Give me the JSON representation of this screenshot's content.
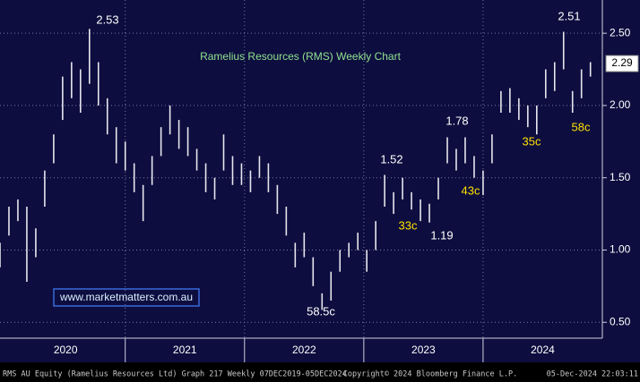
{
  "chart_data": {
    "type": "hilo",
    "title": "Ramelius Resources (RMS) Weekly Chart",
    "watermark": "www.marketmatters.com.au",
    "footer_left": "RMS AU Equity (Ramelius Resources Ltd) Graph 217  Weekly 07DEC2019-05DEC2024",
    "footer_center": "Copyright© 2024 Bloomberg Finance L.P.",
    "footer_right": "05-Dec-2024 22:03:11",
    "color": "#e6e6ee",
    "x": [
      2019.95,
      2020.025,
      2020.1,
      2020.175,
      2020.25,
      2020.325,
      2020.4,
      2020.475,
      2020.55,
      2020.625,
      2020.7,
      2020.775,
      2020.85,
      2020.925,
      2021.0,
      2021.075,
      2021.15,
      2021.225,
      2021.3,
      2021.375,
      2021.45,
      2021.525,
      2021.6,
      2021.675,
      2021.75,
      2021.825,
      2021.9,
      2021.975,
      2022.05,
      2022.125,
      2022.2,
      2022.275,
      2022.35,
      2022.425,
      2022.5,
      2022.575,
      2022.65,
      2022.725,
      2022.8,
      2022.875,
      2022.95,
      2023.025,
      2023.1,
      2023.175,
      2023.25,
      2023.325,
      2023.4,
      2023.475,
      2023.55,
      2023.625,
      2023.7,
      2023.775,
      2023.85,
      2023.925,
      2024.0,
      2024.075,
      2024.15,
      2024.225,
      2024.3,
      2024.375,
      2024.45,
      2024.525,
      2024.6,
      2024.675,
      2024.75,
      2024.825,
      2024.9
    ],
    "high": [
      1.05,
      1.3,
      1.35,
      1.3,
      1.15,
      1.55,
      1.8,
      2.2,
      2.3,
      2.25,
      2.53,
      2.3,
      2.05,
      1.85,
      1.75,
      1.6,
      1.45,
      1.65,
      1.85,
      2.0,
      1.9,
      1.85,
      1.7,
      1.6,
      1.5,
      1.8,
      1.65,
      1.6,
      1.55,
      1.65,
      1.6,
      1.45,
      1.3,
      1.05,
      1.12,
      0.95,
      0.7,
      0.85,
      1.0,
      1.05,
      1.12,
      1.0,
      1.2,
      1.52,
      1.4,
      1.5,
      1.4,
      1.35,
      1.32,
      1.5,
      1.78,
      1.7,
      1.78,
      1.65,
      1.55,
      1.8,
      2.1,
      2.12,
      2.05,
      2.0,
      2.0,
      2.25,
      2.3,
      2.51,
      2.1,
      2.25,
      2.3
    ],
    "low": [
      0.88,
      1.1,
      1.2,
      0.78,
      0.95,
      1.3,
      1.6,
      1.9,
      2.05,
      1.95,
      2.15,
      2.0,
      1.8,
      1.6,
      1.55,
      1.4,
      1.2,
      1.45,
      1.65,
      1.8,
      1.7,
      1.65,
      1.55,
      1.4,
      1.35,
      1.55,
      1.45,
      1.45,
      1.4,
      1.5,
      1.4,
      1.25,
      1.1,
      0.88,
      0.95,
      0.75,
      0.585,
      0.65,
      0.85,
      0.95,
      1.0,
      0.85,
      1.0,
      1.3,
      1.25,
      1.35,
      1.28,
      1.2,
      1.19,
      1.35,
      1.6,
      1.55,
      1.6,
      1.5,
      1.38,
      1.6,
      1.95,
      1.95,
      1.9,
      1.85,
      1.8,
      2.05,
      2.1,
      2.25,
      1.95,
      2.05,
      2.2
    ],
    "last_price": 2.29,
    "xlim": [
      2019.95,
      2025.0
    ],
    "xticks": [
      {
        "value": 2020.5,
        "label": "2020"
      },
      {
        "value": 2021.5,
        "label": "2021"
      },
      {
        "value": 2022.5,
        "label": "2022"
      },
      {
        "value": 2023.5,
        "label": "2023"
      },
      {
        "value": 2024.5,
        "label": "2024"
      }
    ],
    "ylim": [
      0.39,
      2.73
    ],
    "yticks": [
      {
        "value": 0.5,
        "label": "0.50"
      },
      {
        "value": 1.0,
        "label": "1.00"
      },
      {
        "value": 1.5,
        "label": "1.50"
      },
      {
        "value": 2.0,
        "label": "2.00"
      },
      {
        "value": 2.5,
        "label": "2.50"
      }
    ],
    "grid": true,
    "annotations": [
      {
        "text": "2.53",
        "color": "#ffffff"
      },
      {
        "text": "2.51",
        "color": "#ffffff"
      },
      {
        "text": "1.52",
        "color": "#ffffff"
      },
      {
        "text": "1.78",
        "color": "#ffffff"
      },
      {
        "text": "1.19",
        "color": "#ffffff"
      },
      {
        "text": "58.5c",
        "color": "#ffffff"
      },
      {
        "text": "33c",
        "color": "#ffe100"
      },
      {
        "text": "43c",
        "color": "#ffe100"
      },
      {
        "text": "35c",
        "color": "#ffe100"
      },
      {
        "text": "58c",
        "color": "#ffe100"
      }
    ]
  }
}
